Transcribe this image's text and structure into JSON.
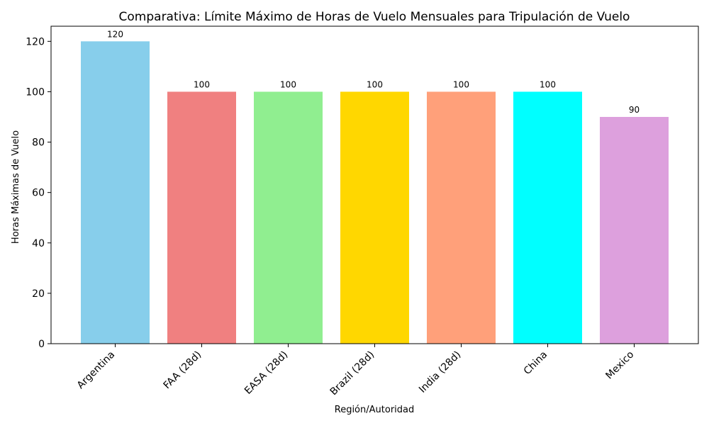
{
  "chart_data": {
    "type": "bar",
    "title": "Comparativa: Límite Máximo de Horas de Vuelo Mensuales para Tripulación de Vuelo",
    "xlabel": "Región/Autoridad",
    "ylabel": "Horas Máximas de Vuelo",
    "categories": [
      "Argentina",
      "FAA (28d)",
      "EASA (28d)",
      "Brazil (28d)",
      "India (28d)",
      "China",
      "Mexico"
    ],
    "values": [
      120,
      100,
      100,
      100,
      100,
      100,
      90
    ],
    "colors": [
      "#87ceeb",
      "#f08080",
      "#90ee90",
      "#ffd700",
      "#ffa07a",
      "#00ffff",
      "#dda0dd"
    ],
    "ylim": [
      0,
      126
    ],
    "yticks": [
      0,
      20,
      40,
      60,
      80,
      100,
      120
    ],
    "grid": false,
    "data_labels": true
  }
}
